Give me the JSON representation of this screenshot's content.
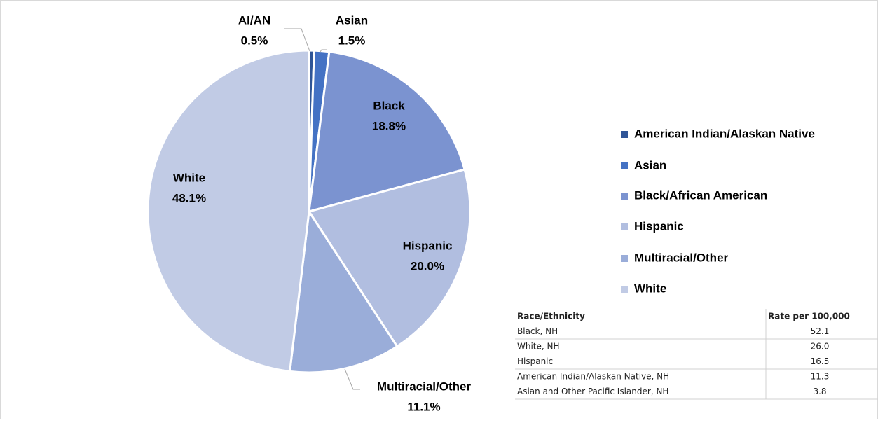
{
  "chart_data": {
    "type": "pie",
    "categories": [
      "American Indian/Alaskan Native",
      "Asian",
      "Black/African American",
      "Hispanic",
      "Multiracial/Other",
      "White"
    ],
    "data_label_names": [
      "AI/AN",
      "Asian",
      "Black",
      "Hispanic",
      "Multiracial/Other",
      "White"
    ],
    "values": [
      0.5,
      1.5,
      18.8,
      20.0,
      11.1,
      48.1
    ],
    "value_labels": [
      "0.5%",
      "1.5%",
      "18.8%",
      "20.0%",
      "11.1%",
      "48.1%"
    ],
    "colors": [
      "#2f5597",
      "#4472c4",
      "#7b93d0",
      "#b1bee0",
      "#9aadd9",
      "#c1cbe5"
    ],
    "legend": "right"
  },
  "table": {
    "header": [
      "Race/Ethnicity",
      "Rate per 100,000"
    ],
    "rows": [
      [
        "Black, NH",
        "52.1"
      ],
      [
        "White, NH",
        "26.0"
      ],
      [
        "Hispanic",
        "16.5"
      ],
      [
        "American Indian/Alaskan Native, NH",
        "11.3"
      ],
      [
        "Asian and Other Pacific Islander, NH",
        "3.8"
      ]
    ]
  }
}
